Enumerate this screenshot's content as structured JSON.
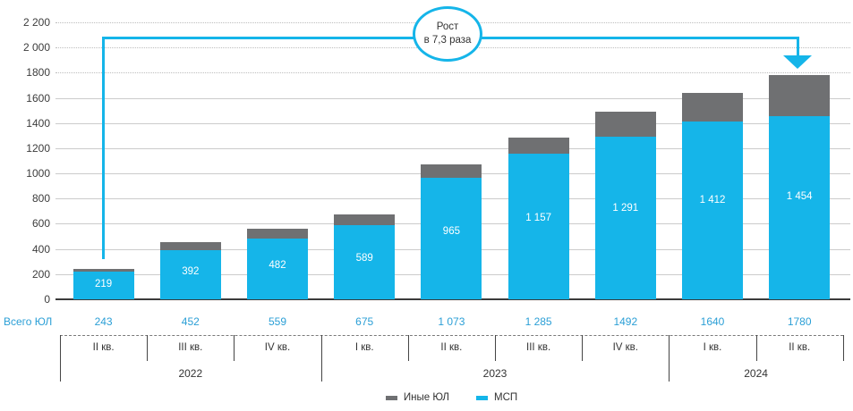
{
  "chart_data": {
    "type": "bar",
    "stacked": true,
    "categories": [
      "II кв.",
      "III кв.",
      "IV кв.",
      "I кв.",
      "II кв.",
      "III кв.",
      "IV кв.",
      "I кв.",
      "II кв."
    ],
    "year_groups": [
      {
        "label": "2022",
        "span": 3
      },
      {
        "label": "2023",
        "span": 4
      },
      {
        "label": "2024",
        "span": 2
      }
    ],
    "series": [
      {
        "name": "МСП",
        "color": "#15b5e9",
        "values": [
          219,
          392,
          482,
          589,
          965,
          1157,
          1291,
          1412,
          1454
        ],
        "labels": [
          "219",
          "392",
          "482",
          "589",
          "965",
          "1 157",
          "1 291",
          "1 412",
          "1 454"
        ]
      },
      {
        "name": "Иные ЮЛ",
        "color": "#6f7072",
        "values": [
          24,
          60,
          77,
          86,
          108,
          128,
          201,
          228,
          326
        ]
      }
    ],
    "totals": {
      "label": "Всего ЮЛ",
      "values": [
        243,
        452,
        559,
        675,
        1073,
        1285,
        1492,
        1640,
        1780
      ],
      "labels": [
        "243",
        "452",
        "559",
        "675",
        "1 073",
        "1 285",
        "1492",
        "1640",
        "1780"
      ]
    },
    "y_axis": {
      "min": 0,
      "max": 2200,
      "step": 200,
      "ticks": [
        {
          "value": 0,
          "label": "0"
        },
        {
          "value": 200,
          "label": "200"
        },
        {
          "value": 400,
          "label": "400"
        },
        {
          "value": 600,
          "label": "600"
        },
        {
          "value": 800,
          "label": "800"
        },
        {
          "value": 1000,
          "label": "1000"
        },
        {
          "value": 1200,
          "label": "1200"
        },
        {
          "value": 1400,
          "label": "1400"
        },
        {
          "value": 1600,
          "label": "1600"
        },
        {
          "value": 1800,
          "label": "1800"
        },
        {
          "value": 2000,
          "label": "2 000"
        },
        {
          "value": 2200,
          "label": "2 200"
        }
      ]
    },
    "annotation": {
      "line1": "Рост",
      "line2": "в 7,3 раза"
    },
    "legend": [
      {
        "label": "Иные ЮЛ",
        "color": "#6f7072"
      },
      {
        "label": "МСП",
        "color": "#15b5e9"
      }
    ],
    "grid": true,
    "legend_position": "bottom"
  },
  "colors": {
    "accent_cyan": "#15b5e9",
    "series_gray": "#6f7072",
    "totals_text": "#2b9fd6",
    "axis_text": "#3c3c3c",
    "gridline": "#cbcbcb"
  }
}
